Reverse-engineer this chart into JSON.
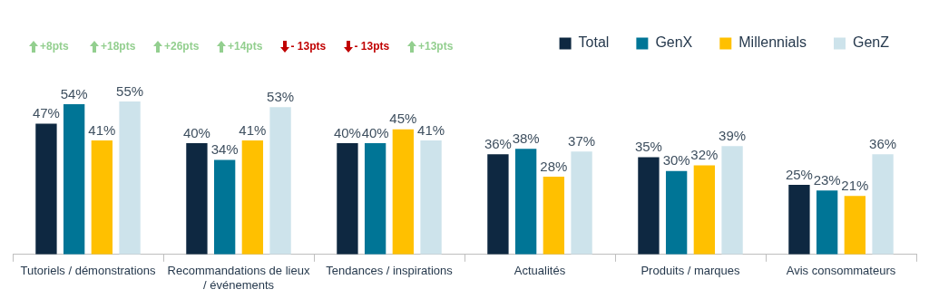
{
  "chart_data": {
    "type": "bar",
    "categories": [
      "Tutoriels / démonstrations",
      "Recommandations de lieux / événements",
      "Tendances / inspirations",
      "Actualités",
      "Produits / marques",
      "Avis consommateurs"
    ],
    "series": [
      {
        "name": "Total",
        "color": "#0e2841",
        "values": [
          47,
          40,
          40,
          36,
          35,
          25
        ],
        "value_labels": [
          "47%",
          "40%",
          "40%",
          "36%",
          "35%",
          "25%"
        ]
      },
      {
        "name": "GenX",
        "color": "#007596",
        "values": [
          54,
          34,
          40,
          38,
          30,
          23
        ],
        "value_labels": [
          "54%",
          "34%",
          "40%",
          "38%",
          "30%",
          "23%"
        ]
      },
      {
        "name": "Millennials",
        "color": "#ffc000",
        "values": [
          41,
          41,
          45,
          28,
          32,
          21
        ],
        "value_labels": [
          "41%",
          "41%",
          "45%",
          "28%",
          "32%",
          "21%"
        ]
      },
      {
        "name": "GenZ",
        "color": "#cde3eb",
        "values": [
          55,
          53,
          41,
          37,
          39,
          36
        ],
        "value_labels": [
          "55%",
          "53%",
          "41%",
          "37%",
          "39%",
          "36%"
        ]
      }
    ],
    "annotations": [
      "+8pts",
      "+18pts",
      "+26pts",
      "+14pts",
      "- 13pts",
      "- 13pts",
      "+13pts"
    ],
    "legend": "top right"
  }
}
